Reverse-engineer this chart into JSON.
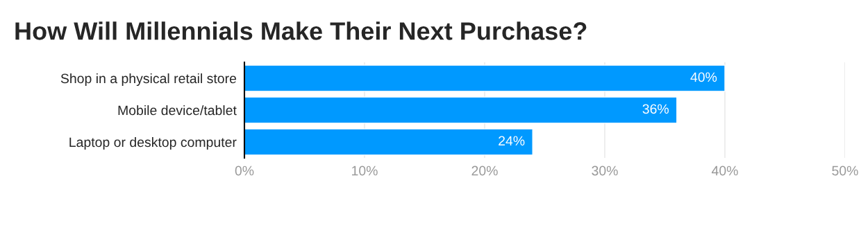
{
  "chart_data": {
    "type": "bar",
    "title": "How Will Millennials Make Their Next Purchase?",
    "orientation": "horizontal",
    "categories": [
      "Shop in a physical retail store",
      "Mobile device/tablet",
      "Laptop or desktop computer"
    ],
    "values": [
      40,
      36,
      24
    ],
    "value_labels": [
      "40%",
      "36%",
      "24%"
    ],
    "color": "#0099ff",
    "xlim": [
      0,
      50
    ],
    "xticks": [
      {
        "value": 0,
        "label": "0%"
      },
      {
        "value": 10,
        "label": "10%"
      },
      {
        "value": 20,
        "label": "20%"
      },
      {
        "value": 30,
        "label": "30%"
      },
      {
        "value": 40,
        "label": "40%"
      },
      {
        "value": 50,
        "label": "50%"
      }
    ],
    "grid": "x"
  }
}
